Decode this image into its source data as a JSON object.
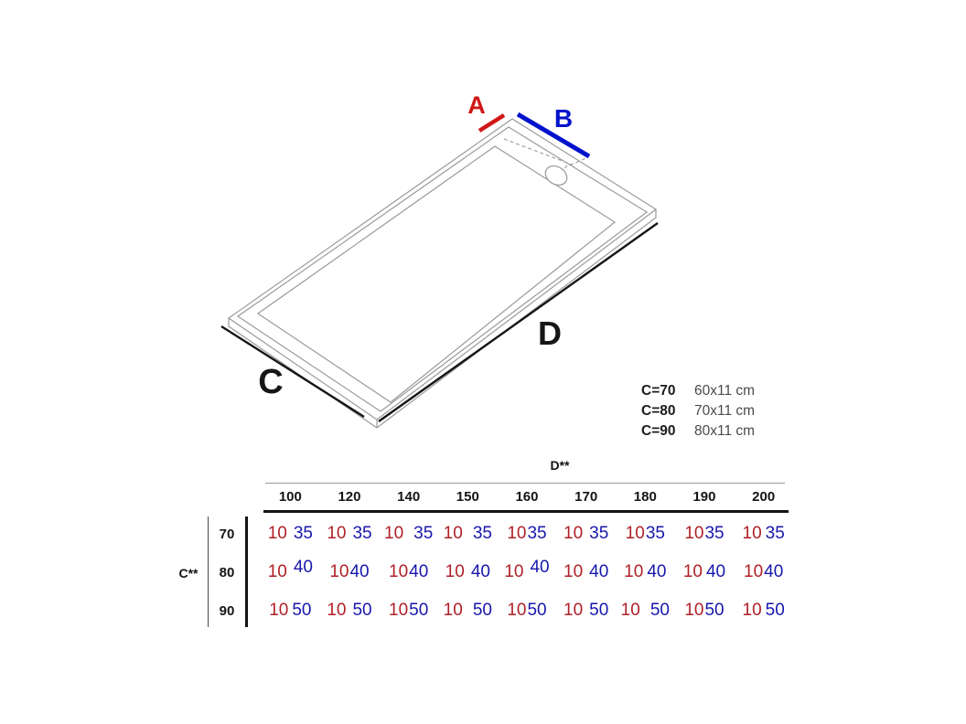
{
  "diagram": {
    "label_a": "A",
    "label_b": "B",
    "label_c": "C",
    "label_d": "D",
    "colors": {
      "a_red": "#d11616",
      "b_blue": "#0012cc",
      "cd_black": "#161616",
      "tray_gray": "#9a9a9a"
    }
  },
  "size_legend": {
    "rows": [
      {
        "label": "C=70",
        "value": "60x11 cm"
      },
      {
        "label": "C=80",
        "value": "70x11 cm"
      },
      {
        "label": "C=90",
        "value": "80x11 cm"
      }
    ]
  },
  "table": {
    "col_axis_label": "D**",
    "row_axis_label": "C**",
    "columns": [
      "100",
      "120",
      "140",
      "150",
      "160",
      "170",
      "180",
      "190",
      "200"
    ],
    "colors": {
      "red": "#b02028",
      "blue": "#1717ac"
    },
    "rows": [
      {
        "label": "70",
        "cells": [
          {
            "red": "10",
            "blue": "35",
            "gap": "m",
            "raised": false
          },
          {
            "red": "10",
            "blue": "35",
            "gap": "m",
            "raised": false
          },
          {
            "red": "10",
            "blue": "35",
            "gap": "w",
            "raised": false
          },
          {
            "red": "10",
            "blue": "35",
            "gap": "w",
            "raised": false
          },
          {
            "red": "10",
            "blue": "35",
            "gap": "t",
            "raised": false
          },
          {
            "red": "10",
            "blue": "35",
            "gap": "m",
            "raised": false
          },
          {
            "red": "10",
            "blue": "35",
            "gap": "t",
            "raised": false
          },
          {
            "red": "10",
            "blue": "35",
            "gap": "t",
            "raised": false
          },
          {
            "red": "10",
            "blue": "35",
            "gap": "s",
            "raised": false
          }
        ]
      },
      {
        "label": "80",
        "cells": [
          {
            "red": "10",
            "blue": "40",
            "gap": "m",
            "raised": true
          },
          {
            "red": "10",
            "blue": "40",
            "gap": "t",
            "raised": false
          },
          {
            "red": "10",
            "blue": "40",
            "gap": "t",
            "raised": false
          },
          {
            "red": "10",
            "blue": "40",
            "gap": "m",
            "raised": false
          },
          {
            "red": "10",
            "blue": "40",
            "gap": "m",
            "raised": true
          },
          {
            "red": "10",
            "blue": "40",
            "gap": "m",
            "raised": false
          },
          {
            "red": "10",
            "blue": "40",
            "gap": "s",
            "raised": false
          },
          {
            "red": "10",
            "blue": "40",
            "gap": "s",
            "raised": false
          },
          {
            "red": "10",
            "blue": "40",
            "gap": "t",
            "raised": false
          }
        ]
      },
      {
        "label": "90",
        "cells": [
          {
            "red": "10",
            "blue": "50",
            "gap": "s",
            "raised": false
          },
          {
            "red": "10",
            "blue": "50",
            "gap": "m",
            "raised": false
          },
          {
            "red": "10",
            "blue": "50",
            "gap": "t",
            "raised": false
          },
          {
            "red": "10",
            "blue": "50",
            "gap": "w",
            "raised": false
          },
          {
            "red": "10",
            "blue": "50",
            "gap": "t",
            "raised": false
          },
          {
            "red": "10",
            "blue": "50",
            "gap": "m",
            "raised": false
          },
          {
            "red": "10",
            "blue": "50",
            "gap": "w",
            "raised": false
          },
          {
            "red": "10",
            "blue": "50",
            "gap": "t",
            "raised": false
          },
          {
            "red": "10",
            "blue": "50",
            "gap": "s",
            "raised": false
          }
        ]
      }
    ]
  }
}
